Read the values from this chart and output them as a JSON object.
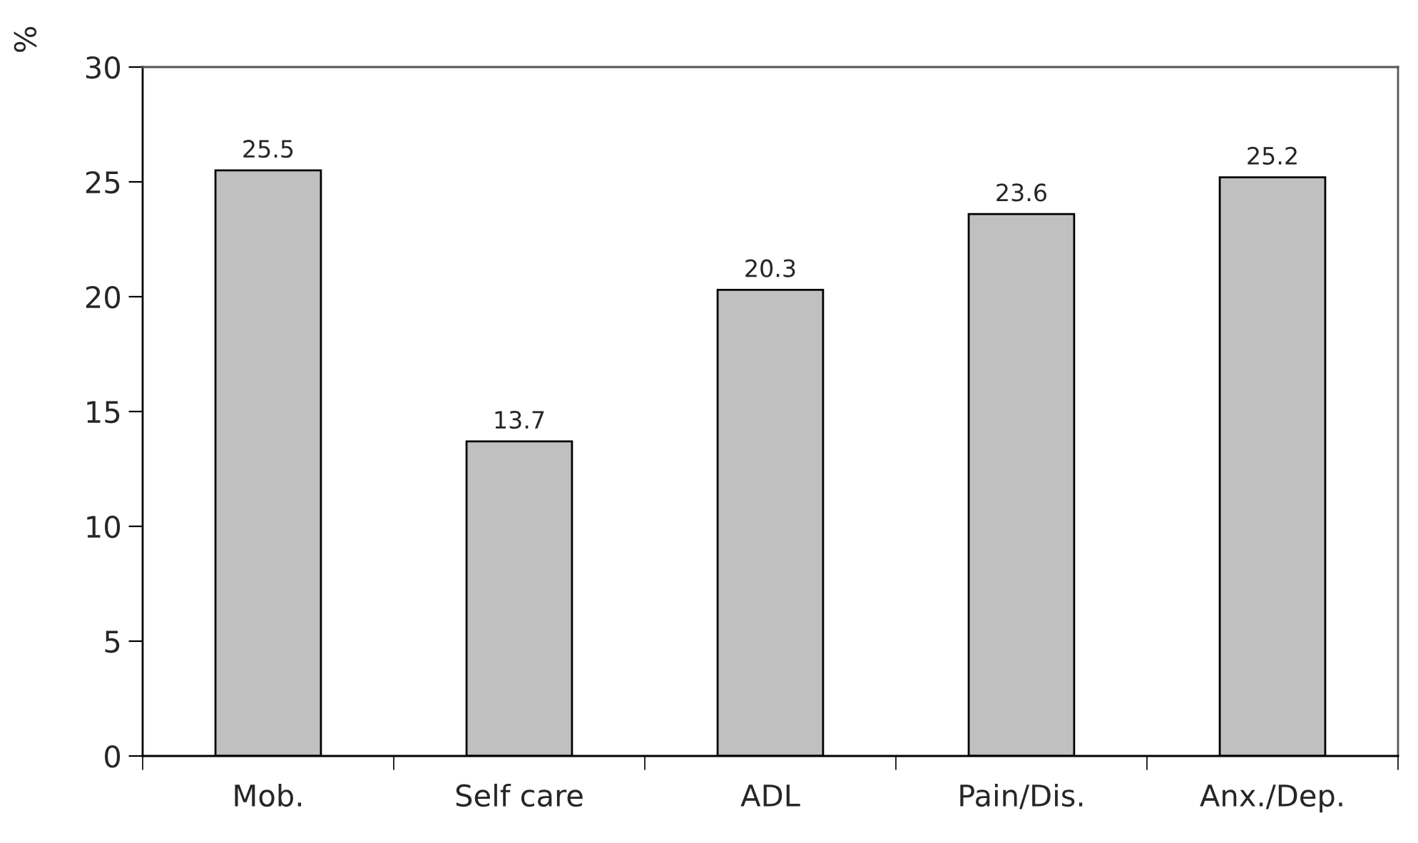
{
  "chart_data": {
    "type": "bar",
    "ylabel": "%",
    "categories": [
      "Mob.",
      "Self care",
      "ADL",
      "Pain/Dis.",
      "Anx./Dep."
    ],
    "values": [
      25.5,
      13.7,
      20.3,
      23.6,
      25.2
    ],
    "color": "#c0c0c0",
    "ylim": [
      0,
      30
    ],
    "yticks": [
      0,
      5,
      10,
      15,
      20,
      25,
      30
    ],
    "data_labels": true,
    "grid": false,
    "legend": false
  }
}
